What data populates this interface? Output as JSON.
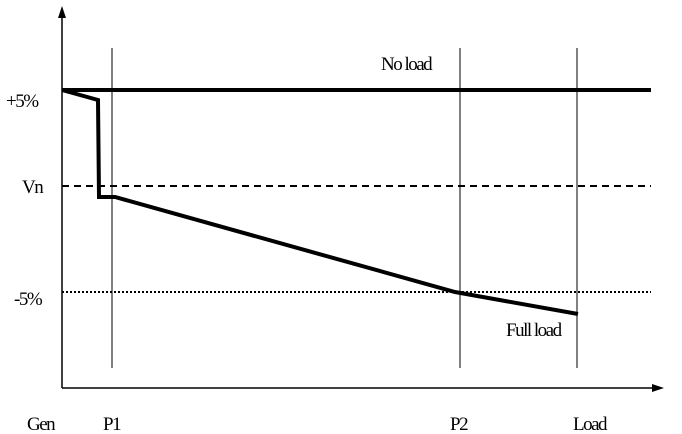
{
  "levels": {
    "upper": "+5%",
    "nominal": "Vn",
    "lower": "-5%"
  },
  "curves": {
    "no_load": "No load",
    "full_load": "Full load"
  },
  "positions": [
    "Gen",
    "P1",
    "P2",
    "Load"
  ]
}
